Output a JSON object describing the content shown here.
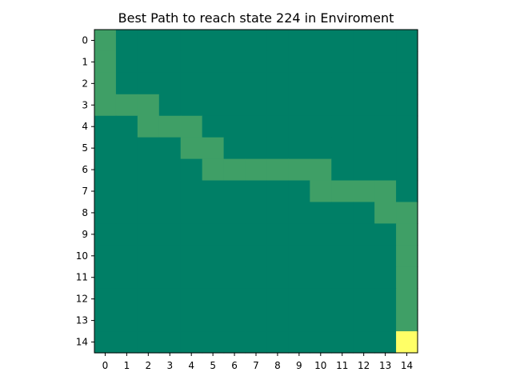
{
  "chart_data": {
    "type": "heatmap",
    "title": "Best Path to reach state 224 in Enviroment",
    "xlabel": "",
    "ylabel": "",
    "grid": false,
    "rows": 15,
    "cols": 15,
    "x_ticks": [
      "0",
      "1",
      "2",
      "3",
      "4",
      "5",
      "6",
      "7",
      "8",
      "9",
      "10",
      "11",
      "12",
      "13",
      "14"
    ],
    "y_ticks": [
      "0",
      "1",
      "2",
      "3",
      "4",
      "5",
      "6",
      "7",
      "8",
      "9",
      "10",
      "11",
      "12",
      "13",
      "14"
    ],
    "colormap": "summer",
    "value_colors": {
      "0": "#007f66",
      "1": "#3f9f66",
      "2": "#ffff66"
    },
    "value_legend": {
      "0": "background",
      "1": "path",
      "2": "goal"
    },
    "goal_state": 224,
    "path_cells": [
      [
        0,
        0
      ],
      [
        1,
        0
      ],
      [
        2,
        0
      ],
      [
        3,
        0
      ],
      [
        3,
        1
      ],
      [
        3,
        2
      ],
      [
        4,
        2
      ],
      [
        4,
        3
      ],
      [
        4,
        4
      ],
      [
        5,
        4
      ],
      [
        5,
        5
      ],
      [
        6,
        5
      ],
      [
        6,
        6
      ],
      [
        6,
        7
      ],
      [
        6,
        8
      ],
      [
        6,
        9
      ],
      [
        6,
        10
      ],
      [
        7,
        10
      ],
      [
        7,
        11
      ],
      [
        7,
        12
      ],
      [
        7,
        13
      ],
      [
        8,
        13
      ],
      [
        8,
        14
      ],
      [
        9,
        14
      ],
      [
        10,
        14
      ],
      [
        11,
        14
      ],
      [
        12,
        14
      ],
      [
        13,
        14
      ]
    ],
    "goal_cells": [
      [
        14,
        14
      ]
    ]
  }
}
